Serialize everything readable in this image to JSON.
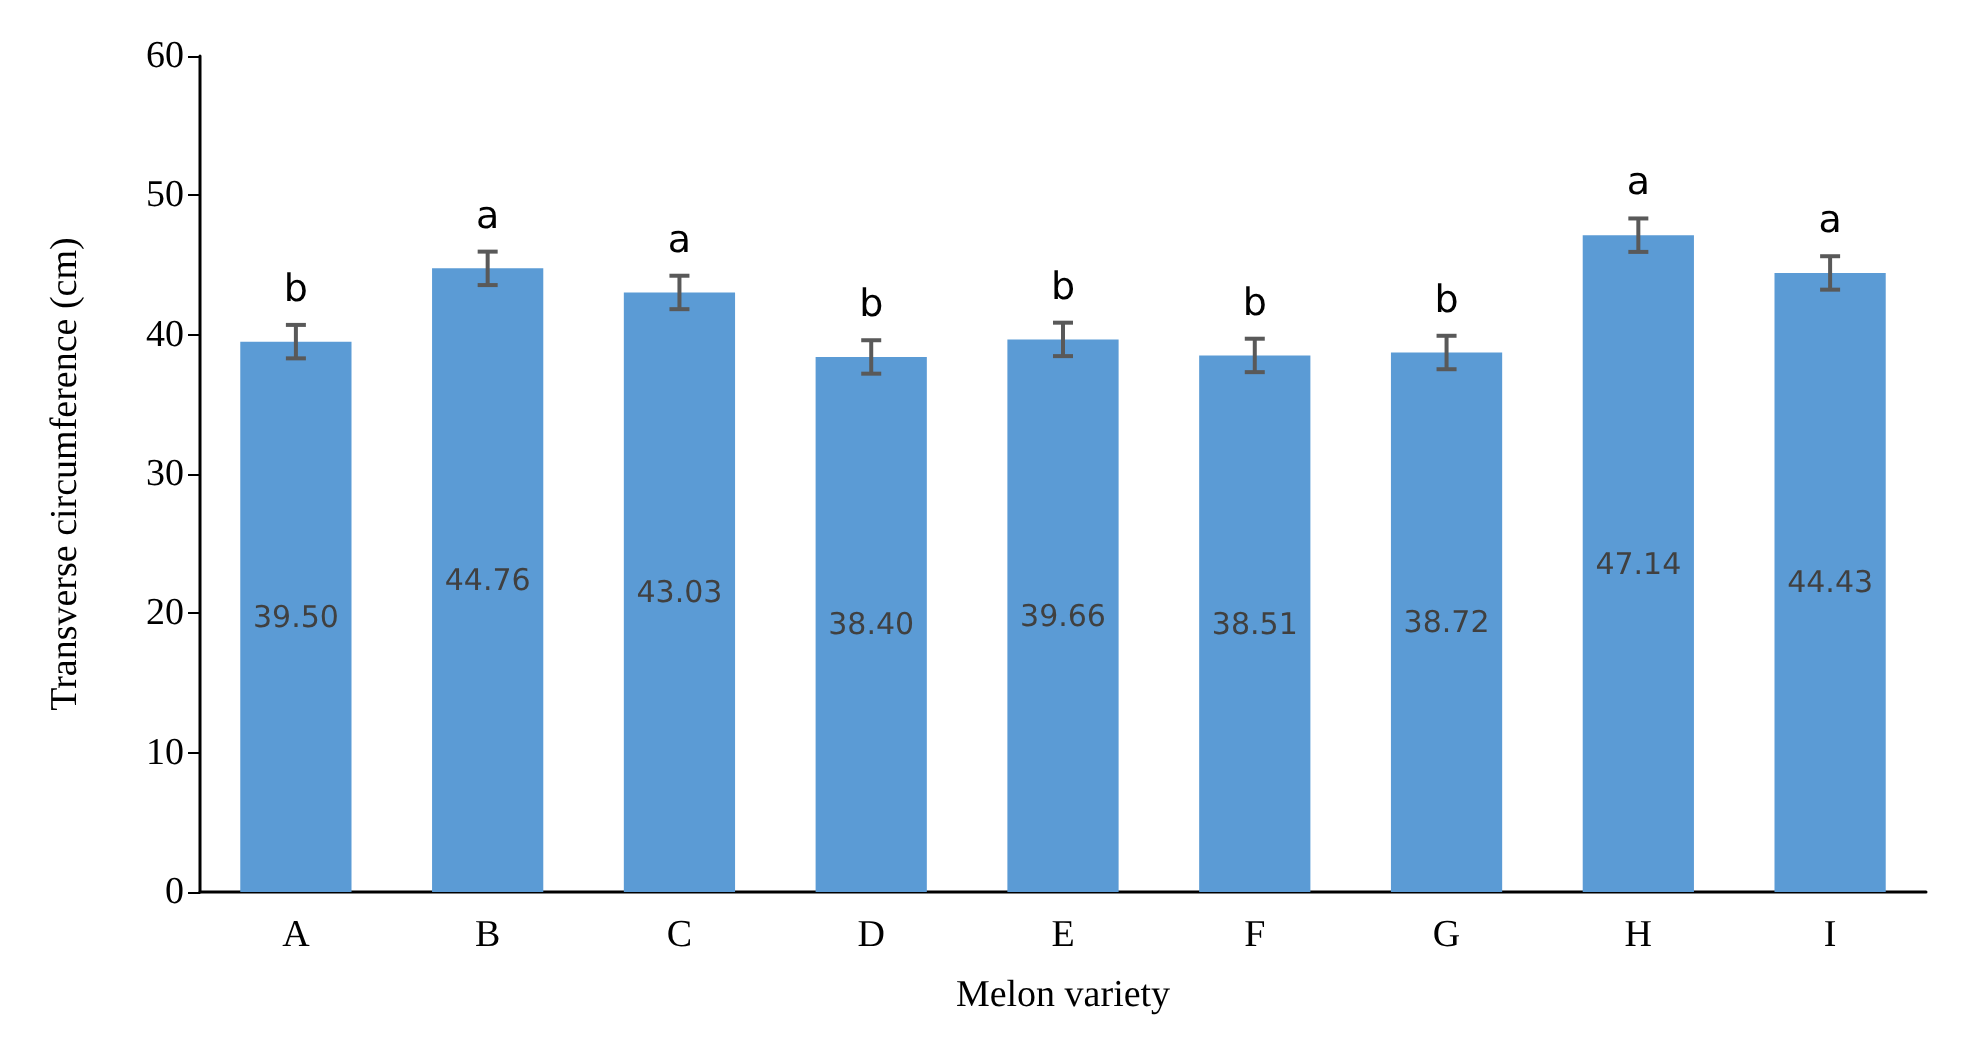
{
  "chart_data": {
    "type": "bar",
    "xlabel": "Melon variety",
    "ylabel": "Transverse circumference (cm)",
    "categories": [
      "A",
      "B",
      "C",
      "D",
      "E",
      "F",
      "G",
      "H",
      "I"
    ],
    "values": [
      39.5,
      44.76,
      43.03,
      38.4,
      39.66,
      38.51,
      38.72,
      47.14,
      44.43
    ],
    "value_labels": [
      "39.50",
      "44.76",
      "43.03",
      "38.40",
      "39.66",
      "38.51",
      "38.72",
      "47.14",
      "44.43"
    ],
    "errors": [
      1.2,
      1.2,
      1.2,
      1.2,
      1.2,
      1.2,
      1.2,
      1.2,
      1.2
    ],
    "color": "#5b9bd5",
    "ylim": [
      0,
      60
    ],
    "yticks": [
      0,
      10,
      20,
      30,
      40,
      50,
      60
    ],
    "grid": false,
    "annotations": [
      "b",
      "a",
      "a",
      "b",
      "b",
      "b",
      "b",
      "a",
      "a"
    ]
  }
}
